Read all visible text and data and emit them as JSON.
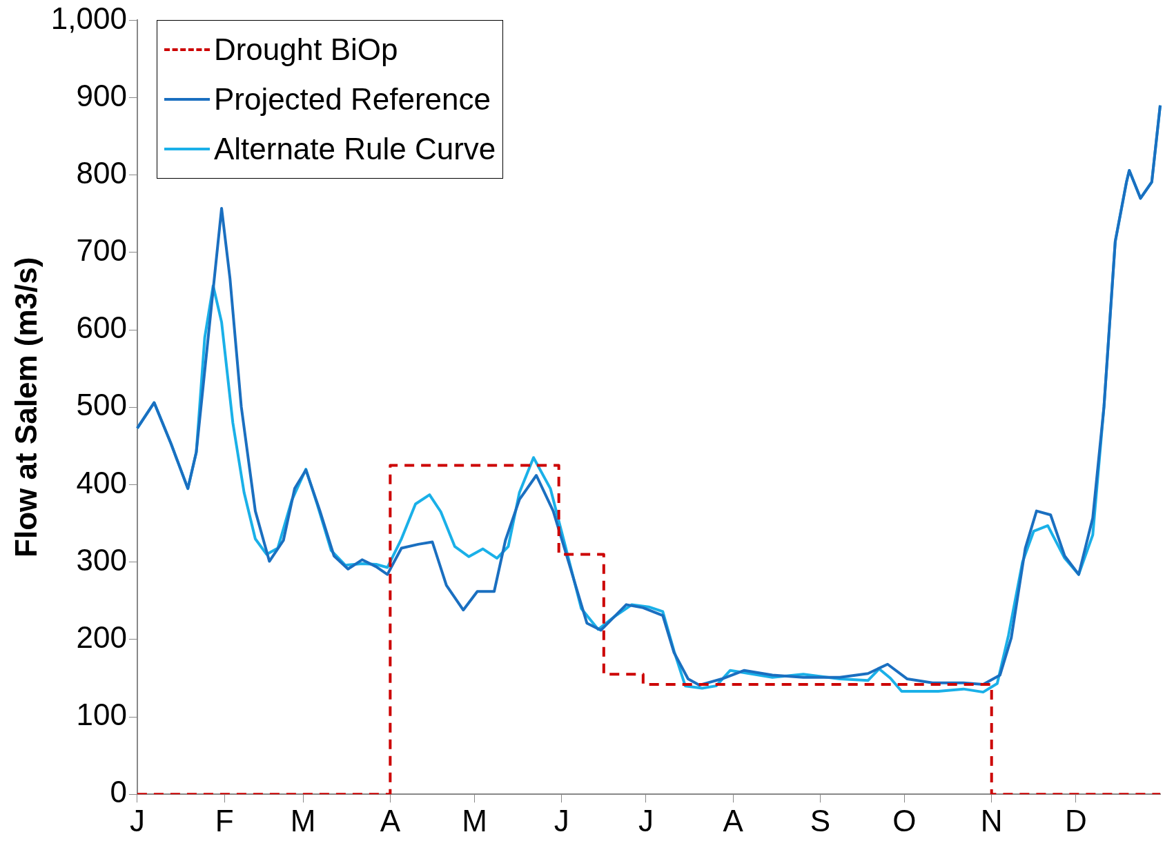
{
  "chart_data": {
    "type": "line",
    "ylabel": "Flow at Salem (m3/s)",
    "ylim": [
      0,
      1000
    ],
    "categories": [
      "J",
      null,
      null,
      null,
      null,
      null,
      null,
      null,
      null,
      null,
      null,
      null,
      null,
      null,
      null,
      null,
      null,
      null,
      null,
      null,
      null,
      null,
      null,
      null,
      null,
      null,
      null,
      null,
      null,
      null,
      null,
      "F",
      null,
      null,
      null,
      null,
      null,
      null,
      null,
      null,
      null,
      null,
      null,
      null,
      null,
      null,
      null,
      null,
      null,
      null,
      null,
      null,
      null,
      null,
      null,
      null,
      null,
      null,
      null,
      "M",
      null,
      null,
      null,
      null,
      null,
      null,
      null,
      null,
      null,
      null,
      null,
      null,
      null,
      null,
      null,
      null,
      null,
      null,
      null,
      null,
      null,
      null,
      null,
      null,
      null,
      null,
      null,
      null,
      null,
      null,
      "A",
      null,
      null,
      null,
      null,
      null,
      null,
      null,
      null,
      null,
      null,
      null,
      null,
      null,
      null,
      null,
      null,
      null,
      null,
      null,
      null,
      null,
      null,
      null,
      null,
      null,
      null,
      null,
      null,
      null,
      "M",
      null,
      null,
      null,
      null,
      null,
      null,
      null,
      null,
      null,
      null,
      null,
      null,
      null,
      null,
      null,
      null,
      null,
      null,
      null,
      null,
      null,
      null,
      null,
      null,
      null,
      null,
      null,
      null,
      null,
      null,
      "J",
      null,
      null,
      null,
      null,
      null,
      null,
      null,
      null,
      null,
      null,
      null,
      null,
      null,
      null,
      null,
      null,
      null,
      null,
      null,
      null,
      null,
      null,
      null,
      null,
      null,
      null,
      null,
      null,
      null,
      "J",
      null,
      null,
      null,
      null,
      null,
      null,
      null,
      null,
      null,
      null,
      null,
      null,
      null,
      null,
      null,
      null,
      null,
      null,
      null,
      null,
      null,
      null,
      null,
      null,
      null,
      null,
      null,
      null,
      null,
      null,
      "A",
      null,
      null,
      null,
      null,
      null,
      null,
      null,
      null,
      null,
      null,
      null,
      null,
      null,
      null,
      null,
      null,
      null,
      null,
      null,
      null,
      null,
      null,
      null,
      null,
      null,
      null,
      null,
      null,
      null,
      null,
      "S",
      null,
      null,
      null,
      null,
      null,
      null,
      null,
      null,
      null,
      null,
      null,
      null,
      null,
      null,
      null,
      null,
      null,
      null,
      null,
      null,
      null,
      null,
      null,
      null,
      null,
      null,
      null,
      null,
      null,
      "O",
      null,
      null,
      null,
      null,
      null,
      null,
      null,
      null,
      null,
      null,
      null,
      null,
      null,
      null,
      null,
      null,
      null,
      null,
      null,
      null,
      null,
      null,
      null,
      null,
      null,
      null,
      null,
      null,
      null,
      null,
      "N",
      null,
      null,
      null,
      null,
      null,
      null,
      null,
      null,
      null,
      null,
      null,
      null,
      null,
      null,
      null,
      null,
      null,
      null,
      null,
      null,
      null,
      null,
      null,
      null,
      null,
      null,
      null,
      null,
      null,
      "D",
      null,
      null,
      null,
      null,
      null,
      null,
      null,
      null,
      null,
      null,
      null,
      null,
      null,
      null,
      null,
      null,
      null,
      null,
      null,
      null,
      null,
      null,
      null,
      null,
      null,
      null,
      null,
      null,
      null,
      null
    ],
    "yticks": [
      0,
      100,
      200,
      300,
      400,
      500,
      600,
      700,
      800,
      900,
      {
        "value": 1000,
        "label": "1,000"
      }
    ],
    "legend": "top left",
    "marker": "none",
    "series": [
      {
        "name": "Drought BiOp",
        "type": "step",
        "line_style": "dashed",
        "color": "#cc0000",
        "values": [
          0,
          null,
          null,
          null,
          null,
          null,
          null,
          null,
          null,
          null,
          null,
          null,
          null,
          null,
          null,
          null,
          null,
          null,
          null,
          null,
          null,
          null,
          null,
          null,
          null,
          null,
          null,
          null,
          null,
          null,
          null,
          null,
          null,
          null,
          null,
          null,
          null,
          null,
          null,
          null,
          null,
          null,
          null,
          null,
          null,
          null,
          null,
          null,
          null,
          null,
          null,
          null,
          null,
          null,
          null,
          null,
          null,
          null,
          null,
          null,
          null,
          null,
          null,
          null,
          null,
          null,
          null,
          null,
          null,
          null,
          null,
          null,
          null,
          null,
          null,
          null,
          null,
          null,
          null,
          null,
          null,
          null,
          null,
          null,
          null,
          null,
          null,
          null,
          null,
          null,
          425,
          null,
          null,
          null,
          null,
          null,
          null,
          null,
          null,
          null,
          null,
          null,
          null,
          null,
          null,
          null,
          null,
          null,
          null,
          null,
          null,
          null,
          null,
          null,
          null,
          null,
          null,
          null,
          null,
          null,
          null,
          null,
          null,
          null,
          null,
          null,
          null,
          null,
          null,
          null,
          null,
          null,
          null,
          null,
          null,
          null,
          null,
          null,
          null,
          null,
          null,
          null,
          null,
          null,
          null,
          null,
          null,
          null,
          null,
          null,
          310,
          null,
          null,
          null,
          null,
          null,
          null,
          null,
          null,
          null,
          null,
          null,
          null,
          null,
          null,
          null,
          155,
          null,
          null,
          null,
          null,
          null,
          null,
          null,
          null,
          null,
          null,
          null,
          null,
          null,
          142,
          null,
          null,
          null,
          null,
          null,
          null,
          null,
          null,
          null,
          null,
          null,
          null,
          null,
          null,
          null,
          null,
          null,
          null,
          null,
          null,
          null,
          null,
          null,
          null,
          null,
          null,
          null,
          null,
          null,
          null,
          null,
          null,
          null,
          null,
          null,
          null,
          null,
          null,
          null,
          null,
          null,
          null,
          null,
          null,
          null,
          null,
          null,
          null,
          null,
          null,
          null,
          null,
          null,
          null,
          null,
          null,
          null,
          null,
          null,
          null,
          null,
          null,
          null,
          null,
          null,
          null,
          null,
          null,
          null,
          null,
          null,
          null,
          null,
          null,
          null,
          null,
          null,
          null,
          null,
          null,
          null,
          null,
          null,
          null,
          null,
          null,
          null,
          null,
          null,
          null,
          null,
          null,
          null,
          null,
          null,
          null,
          null,
          null,
          null,
          null,
          null,
          null,
          null,
          null,
          null,
          null,
          null,
          null,
          null,
          null,
          null,
          null,
          null,
          null,
          null,
          null,
          null,
          null,
          null,
          null,
          null,
          null,
          null,
          0,
          null,
          null,
          null,
          null,
          null,
          null,
          null,
          null,
          null,
          null,
          null,
          null,
          null,
          null,
          null,
          null,
          null,
          null,
          null,
          null,
          null,
          null,
          null,
          null,
          null,
          null,
          null,
          null,
          null,
          null,
          null,
          null,
          null,
          null,
          null,
          null,
          null,
          null,
          null,
          null,
          null,
          null,
          null,
          null,
          null,
          null,
          null,
          null,
          null,
          null,
          null,
          null,
          null,
          null,
          null,
          null,
          null,
          null,
          null,
          0
        ]
      },
      {
        "name": "Projected Reference",
        "line_style": "solid",
        "color": "#1a6fc0",
        "values": [
          473,
          null,
          null,
          null,
          null,
          null,
          506,
          null,
          null,
          null,
          null,
          null,
          453,
          null,
          null,
          null,
          null,
          null,
          395,
          null,
          null,
          442,
          null,
          null,
          null,
          null,
          617,
          null,
          null,
          null,
          757,
          null,
          null,
          666,
          null,
          null,
          null,
          501,
          null,
          null,
          null,
          null,
          366,
          null,
          null,
          null,
          null,
          301,
          null,
          null,
          null,
          null,
          328,
          null,
          null,
          null,
          395,
          null,
          null,
          null,
          419,
          null,
          null,
          null,
          null,
          366,
          null,
          null,
          null,
          null,
          308,
          null,
          null,
          null,
          null,
          291,
          null,
          null,
          null,
          null,
          303,
          null,
          null,
          null,
          null,
          294,
          null,
          null,
          null,
          284,
          null,
          null,
          null,
          null,
          318,
          null,
          null,
          null,
          null,
          null,
          323,
          null,
          null,
          null,
          null,
          326,
          null,
          null,
          null,
          null,
          270,
          null,
          null,
          null,
          null,
          null,
          238,
          null,
          null,
          null,
          null,
          262,
          null,
          null,
          null,
          null,
          null,
          262,
          null,
          null,
          null,
          328,
          null,
          null,
          null,
          null,
          381,
          null,
          null,
          null,
          null,
          null,
          412,
          null,
          null,
          null,
          null,
          null,
          366,
          null,
          null,
          null,
          318,
          null,
          null,
          null,
          null,
          null,
          null,
          null,
          221,
          null,
          null,
          null,
          null,
          212,
          null,
          null,
          null,
          null,
          null,
          null,
          null,
          null,
          245,
          null,
          null,
          null,
          null,
          null,
          241,
          null,
          null,
          null,
          null,
          null,
          null,
          231,
          null,
          null,
          null,
          183,
          null,
          null,
          null,
          null,
          149,
          null,
          null,
          null,
          141,
          null,
          null,
          null,
          null,
          null,
          null,
          null,
          149,
          null,
          null,
          null,
          null,
          null,
          null,
          null,
          160,
          null,
          null,
          null,
          null,
          null,
          null,
          null,
          null,
          null,
          154,
          null,
          null,
          null,
          null,
          null,
          null,
          null,
          null,
          null,
          null,
          151,
          null,
          null,
          null,
          null,
          null,
          null,
          null,
          null,
          null,
          null,
          null,
          null,
          151,
          null,
          null,
          null,
          null,
          null,
          null,
          null,
          null,
          null,
          156,
          null,
          null,
          null,
          null,
          null,
          null,
          168,
          null,
          null,
          null,
          null,
          null,
          null,
          149,
          null,
          null,
          null,
          null,
          null,
          null,
          null,
          null,
          144,
          null,
          null,
          null,
          null,
          null,
          null,
          null,
          null,
          null,
          null,
          144,
          null,
          null,
          null,
          null,
          null,
          null,
          142,
          null,
          null,
          null,
          null,
          null,
          154,
          null,
          null,
          null,
          202,
          null,
          null,
          null,
          null,
          318,
          null,
          null,
          null,
          366,
          null,
          null,
          null,
          null,
          361,
          null,
          null,
          null,
          null,
          308,
          null,
          null,
          null,
          null,
          284,
          null,
          null,
          null,
          null,
          357,
          null,
          null,
          null,
          501,
          null,
          null,
          null,
          714,
          null,
          null,
          null,
          791,
          806,
          null,
          null,
          null,
          770,
          null,
          null,
          null,
          791,
          null,
          null,
          890
        ]
      },
      {
        "name": "Alternate Rule Curve",
        "line_style": "solid",
        "color": "#1ab0e8",
        "values": [
          473,
          null,
          null,
          null,
          null,
          null,
          506,
          null,
          null,
          null,
          null,
          null,
          453,
          null,
          null,
          null,
          null,
          null,
          395,
          null,
          null,
          442,
          null,
          null,
          590,
          null,
          null,
          657,
          null,
          null,
          610,
          null,
          null,
          null,
          480,
          null,
          null,
          null,
          390,
          null,
          null,
          null,
          330,
          null,
          null,
          null,
          310,
          null,
          null,
          null,
          318,
          null,
          null,
          null,
          null,
          380,
          null,
          null,
          null,
          null,
          420,
          null,
          null,
          null,
          375,
          null,
          null,
          null,
          null,
          315,
          null,
          null,
          null,
          null,
          296,
          null,
          null,
          null,
          null,
          null,
          298,
          null,
          null,
          null,
          null,
          297,
          null,
          null,
          null,
          293,
          null,
          null,
          null,
          null,
          330,
          null,
          null,
          null,
          null,
          375,
          null,
          null,
          null,
          null,
          387,
          null,
          null,
          null,
          365,
          null,
          null,
          null,
          null,
          320,
          null,
          null,
          null,
          null,
          307,
          null,
          null,
          null,
          null,
          317,
          null,
          null,
          null,
          null,
          305,
          null,
          null,
          null,
          320,
          null,
          null,
          null,
          390,
          null,
          null,
          null,
          null,
          435,
          null,
          null,
          null,
          null,
          null,
          395,
          null,
          null,
          null,
          null,
          325,
          null,
          null,
          null,
          null,
          null,
          240,
          null,
          null,
          null,
          null,
          null,
          213,
          null,
          null,
          null,
          null,
          null,
          230,
          null,
          null,
          null,
          null,
          null,
          245,
          null,
          null,
          null,
          null,
          null,
          242,
          null,
          null,
          null,
          null,
          236,
          null,
          null,
          null,
          185,
          null,
          null,
          null,
          140,
          null,
          null,
          null,
          null,
          null,
          137,
          null,
          null,
          null,
          null,
          140,
          null,
          null,
          null,
          null,
          160,
          null,
          null,
          null,
          null,
          157,
          null,
          null,
          null,
          null,
          null,
          null,
          null,
          null,
          null,
          151,
          null,
          null,
          null,
          null,
          null,
          null,
          null,
          null,
          null,
          null,
          155,
          null,
          null,
          null,
          null,
          null,
          null,
          null,
          null,
          null,
          null,
          null,
          null,
          149,
          null,
          null,
          null,
          null,
          null,
          null,
          null,
          null,
          null,
          147,
          null,
          null,
          null,
          162,
          null,
          null,
          null,
          150,
          null,
          null,
          null,
          133,
          null,
          null,
          null,
          null,
          null,
          null,
          null,
          null,
          null,
          null,
          null,
          null,
          133,
          null,
          null,
          null,
          null,
          null,
          null,
          null,
          null,
          136,
          null,
          null,
          null,
          null,
          null,
          null,
          132,
          null,
          null,
          null,
          null,
          143,
          null,
          null,
          null,
          205,
          null,
          null,
          null,
          null,
          300,
          null,
          null,
          null,
          340,
          null,
          null,
          null,
          null,
          347,
          null,
          null,
          null,
          null,
          null,
          305,
          null,
          null,
          null,
          null,
          284,
          null,
          null,
          null,
          null,
          335,
          null,
          null,
          null,
          501,
          null,
          null,
          null,
          714,
          null,
          null,
          null,
          791,
          806,
          null,
          null,
          null,
          770,
          null,
          null,
          null,
          791,
          null,
          null,
          890
        ]
      }
    ]
  }
}
